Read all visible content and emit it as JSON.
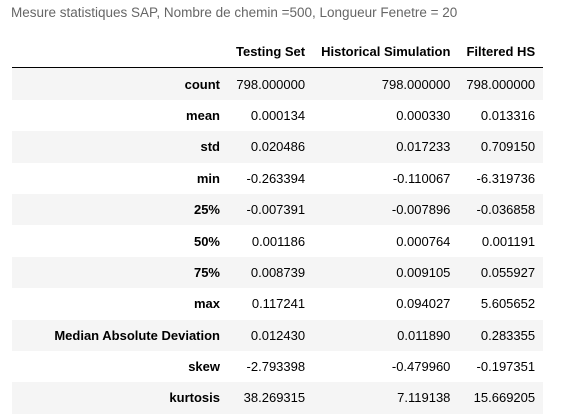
{
  "caption": "Mesure statistiques SAP, Nombre de chemin =500, Longueur Fenetre = 20",
  "columns": [
    "Testing Set",
    "Historical Simulation",
    "Filtered HS"
  ],
  "rows": [
    {
      "label": "count",
      "values": [
        "798.000000",
        "798.000000",
        "798.000000"
      ]
    },
    {
      "label": "mean",
      "values": [
        "0.000134",
        "0.000330",
        "0.013316"
      ]
    },
    {
      "label": "std",
      "values": [
        "0.020486",
        "0.017233",
        "0.709150"
      ]
    },
    {
      "label": "min",
      "values": [
        "-0.263394",
        "-0.110067",
        "-6.319736"
      ]
    },
    {
      "label": "25%",
      "values": [
        "-0.007391",
        "-0.007896",
        "-0.036858"
      ]
    },
    {
      "label": "50%",
      "values": [
        "0.001186",
        "0.000764",
        "0.001191"
      ]
    },
    {
      "label": "75%",
      "values": [
        "0.008739",
        "0.009105",
        "0.055927"
      ]
    },
    {
      "label": "max",
      "values": [
        "0.117241",
        "0.094027",
        "5.605652"
      ]
    },
    {
      "label": "Median Absolute Deviation",
      "values": [
        "0.012430",
        "0.011890",
        "0.283355"
      ]
    },
    {
      "label": "skew",
      "values": [
        "-2.793398",
        "-0.479960",
        "-0.197351"
      ]
    },
    {
      "label": "kurtosis",
      "values": [
        "38.269315",
        "7.119138",
        "15.669205"
      ]
    }
  ]
}
